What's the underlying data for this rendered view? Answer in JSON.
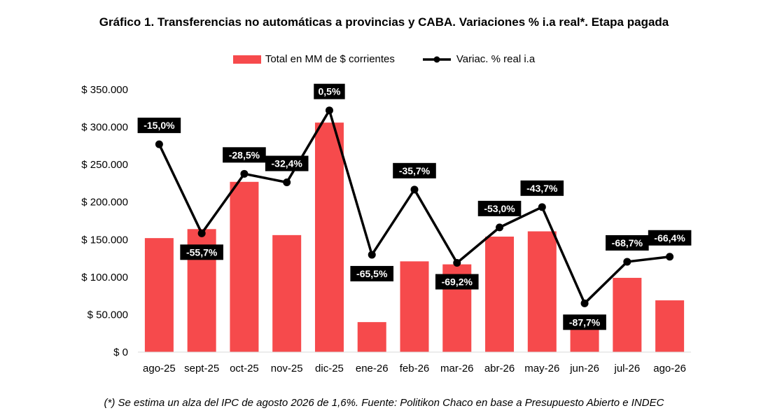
{
  "colors": {
    "bar": "#f64a4c",
    "line": "#000000",
    "label_bg": "#000000",
    "label_text": "#ffffff",
    "axis_text": "#000000"
  },
  "chart_data": {
    "type": "bar",
    "title": "Gráfico 1. Transferencias no automáticas a provincias y CABA. Variaciones % i.a real*. Etapa pagada",
    "categories": [
      "ago-25",
      "sept-25",
      "oct-25",
      "nov-25",
      "dic-25",
      "ene-26",
      "feb-26",
      "mar-26",
      "abr-26",
      "may-26",
      "jun-26",
      "jul-26",
      "ago-26"
    ],
    "ylim": [
      0,
      350000
    ],
    "yticks": [
      "$ 0",
      "$ 50.000",
      "$ 100.000",
      "$ 150.000",
      "$ 200.000",
      "$ 250.000",
      "$ 300.000",
      "$ 350.000"
    ],
    "y2lim": [
      -110,
      10
    ],
    "series": [
      {
        "name": "Total en MM de $ corrientes",
        "type": "bar",
        "values": [
          152000,
          164000,
          227000,
          156000,
          306000,
          40000,
          121000,
          117000,
          154000,
          161000,
          48000,
          99000,
          69000
        ]
      },
      {
        "name": "Variac. % real i.a",
        "type": "line",
        "values": [
          -15.0,
          -55.7,
          -28.5,
          -32.4,
          0.5,
          -65.5,
          -35.7,
          -69.2,
          -53.0,
          -43.7,
          -87.7,
          -68.7,
          -66.4
        ],
        "labels": [
          "-15,0%",
          "-55,7%",
          "-28,5%",
          "-32,4%",
          "0,5%",
          "-65,5%",
          "-35,7%",
          "-69,2%",
          "-53,0%",
          "-43,7%",
          "-87,7%",
          "-68,7%",
          "-66,4%"
        ],
        "label_side": [
          "above",
          "below",
          "above",
          "above",
          "above",
          "below",
          "above",
          "below",
          "above",
          "above",
          "below",
          "above",
          "above"
        ]
      }
    ],
    "legend": "top-center",
    "grid": false
  },
  "footnote": "(*) Se estima un alza del IPC de agosto 2026 de 1,6%. Fuente: Politikon Chaco en base a Presupuesto Abierto e INDEC"
}
